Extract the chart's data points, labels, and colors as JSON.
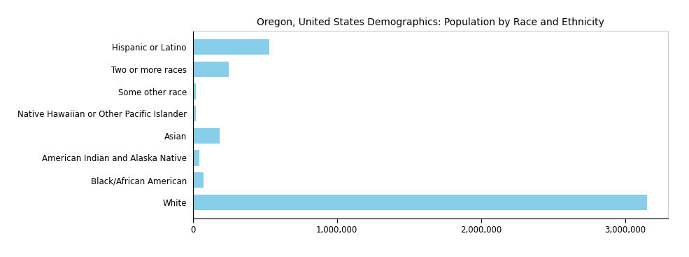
{
  "title": "Oregon, United States Demographics: Population by Race and Ethnicity",
  "categories": [
    "White",
    "Black/African American",
    "American Indian and Alaska Native",
    "Asian",
    "Native Hawaiian or Other Pacific Islander",
    "Some other race",
    "Two or more races",
    "Hispanic or Latino"
  ],
  "values": [
    3150000,
    75000,
    45000,
    185000,
    18000,
    22000,
    250000,
    530000
  ],
  "bar_color": "#87CEEB",
  "xlim": [
    0,
    3300000
  ],
  "xticks": [
    0,
    1000000,
    2000000,
    3000000
  ],
  "title_fontsize": 10,
  "tick_fontsize": 8.5,
  "label_fontsize": 8.5,
  "background_color": "#ffffff",
  "bar_height": 0.7
}
